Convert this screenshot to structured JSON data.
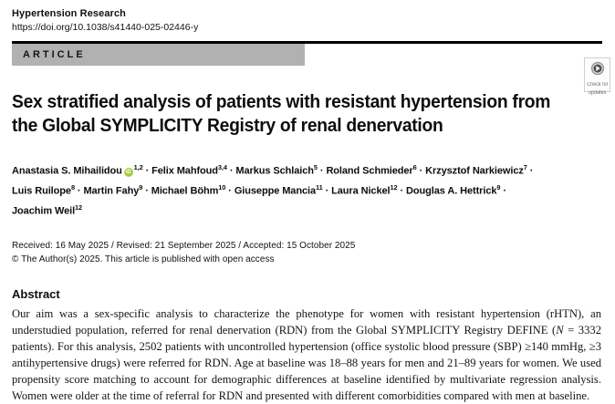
{
  "header": {
    "journal": "Hypertension Research",
    "doi": "https://doi.org/10.1038/s41440-025-02446-y",
    "article_label": "ARTICLE",
    "check_updates": {
      "line1": "Check for",
      "line2": "updates"
    }
  },
  "title": {
    "lines": [
      "Sex stratified analysis of patients with resistant hypertension from",
      "the Global SYMPLICITY Registry of renal denervation"
    ]
  },
  "authors": {
    "separator": " · ",
    "lines": [
      [
        {
          "name": "Anastasia S. Mihailidou",
          "sup": "1,2",
          "orcid": true
        },
        {
          "name": "Felix Mahfoud",
          "sup": "3,4"
        },
        {
          "name": "Markus Schlaich",
          "sup": "5"
        },
        {
          "name": "Roland Schmieder",
          "sup": "6"
        },
        {
          "name": "Krzysztof Narkiewicz",
          "sup": "7"
        }
      ],
      [
        {
          "name": "Luis Ruilope",
          "sup": "8"
        },
        {
          "name": "Martin Fahy",
          "sup": "9"
        },
        {
          "name": "Michael Böhm",
          "sup": "10"
        },
        {
          "name": "Giuseppe Mancia",
          "sup": "11"
        },
        {
          "name": "Laura Nickel",
          "sup": "12"
        },
        {
          "name": "Douglas A. Hettrick",
          "sup": "9"
        }
      ],
      [
        {
          "name": "Joachim Weil",
          "sup": "12"
        }
      ]
    ],
    "orcid_icon_label": "iD",
    "orcid_color": "#a6ce39"
  },
  "dates": {
    "received_line": "Received: 16 May 2025 / Revised: 21 September 2025 / Accepted: 15 October 2025",
    "copyright_line": "© The Author(s) 2025. This article is published with open access"
  },
  "abstract": {
    "heading": "Abstract",
    "segments": [
      {
        "text": "Our aim was a sex-specific analysis to characterize the phenotype for women with resistant hypertension (rHTN), an understudied population, referred for renal denervation (RDN) from the Global SYMPLICITY Registry DEFINE ("
      },
      {
        "text": "N",
        "italic": true
      },
      {
        "text": " = 3332 patients). For this analysis, 2502 patients with uncontrolled hypertension (office systolic blood pressure (SBP) ≥140 mmHg, ≥3 antihypertensive drugs) were referred for RDN. Age at baseline was 18–88 years for men and 21–89 years for women. We used propensity score matching to account for demographic differences at baseline identified by multivariate regression analysis. Women were older at the time of referral for RDN and presented with different comorbidities compared with men at baseline."
      }
    ]
  },
  "colors": {
    "article_badge_bg": "#b1b1b1",
    "rule": "#000000",
    "orcid_green": "#a6ce39",
    "page_bg": "#ffffff"
  }
}
